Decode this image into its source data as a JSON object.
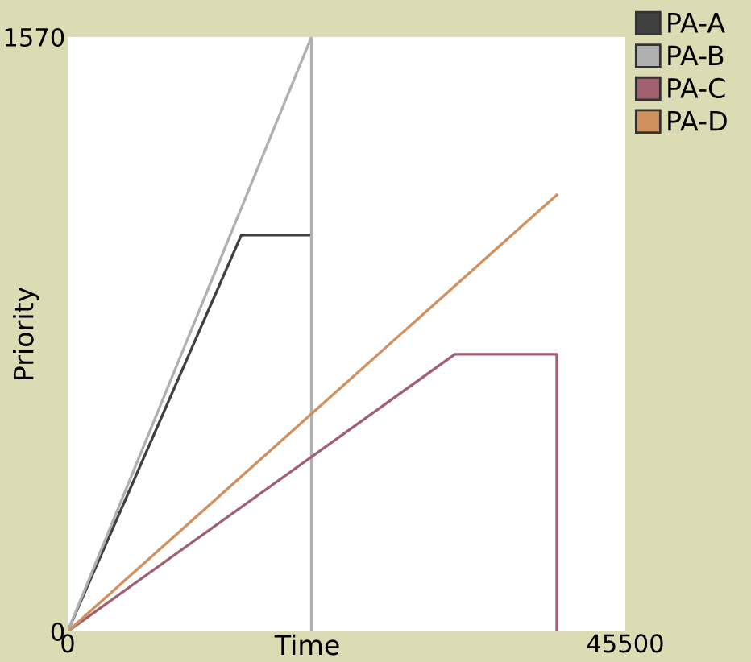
{
  "chart_data": {
    "type": "line",
    "xlabel": "Time",
    "ylabel": "Priority",
    "xlim": [
      0,
      45500
    ],
    "ylim": [
      0,
      1570
    ],
    "xticks": [
      0,
      45500
    ],
    "yticks": [
      0,
      1570
    ],
    "grid": false,
    "legend": "top right",
    "marker": "none",
    "line_style": "solid",
    "series": [
      {
        "name": "PA-A",
        "color": "#404040",
        "x": [
          0,
          14170,
          19890
        ],
        "values": [
          0,
          1047,
          1047
        ]
      },
      {
        "name": "PA-B",
        "color": "#b0b0b0",
        "x": [
          0,
          19890,
          19890
        ],
        "values": [
          0,
          1570,
          0
        ]
      },
      {
        "name": "PA-C",
        "color": "#a06070",
        "x": [
          0,
          31590,
          39910,
          39910
        ],
        "values": [
          0,
          732,
          732,
          0
        ]
      },
      {
        "name": "PA-D",
        "color": "#d09060",
        "x": [
          0,
          39910
        ],
        "values": [
          0,
          1153
        ]
      }
    ]
  }
}
